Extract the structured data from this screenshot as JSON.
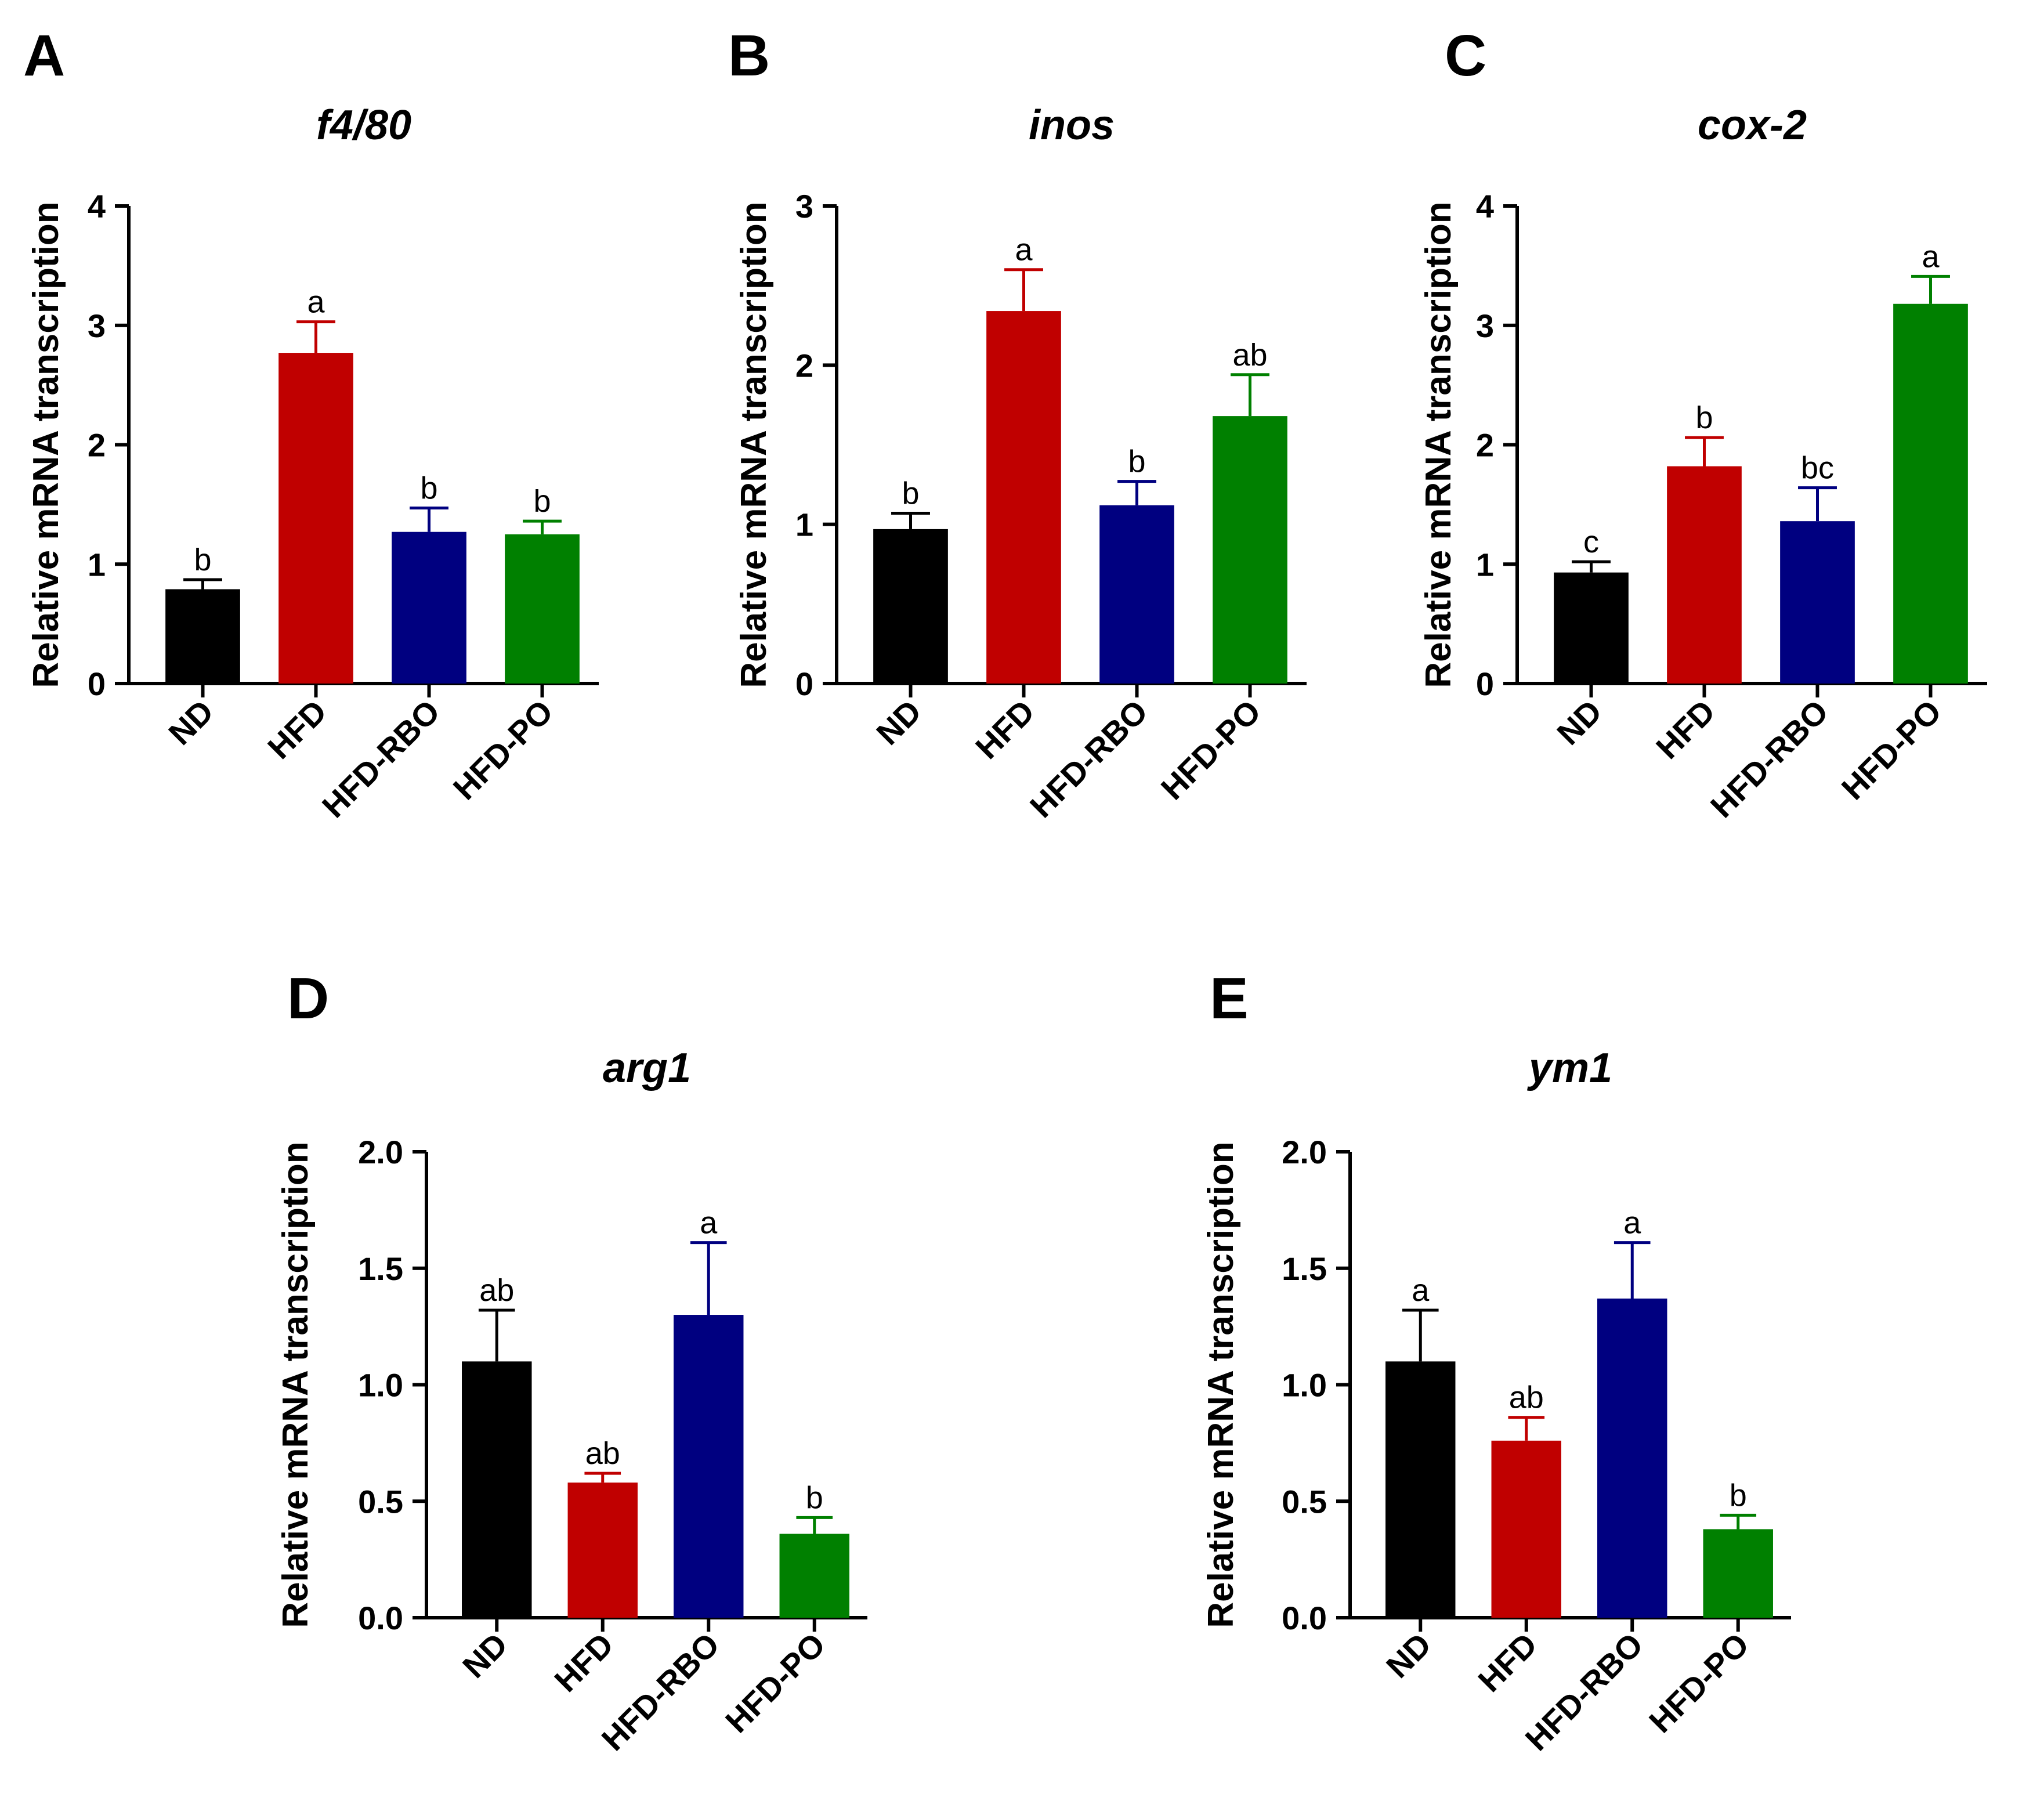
{
  "chart_data": [
    {
      "panel": "A",
      "type": "bar",
      "title": "f4/80",
      "ylabel": "Relative mRNA transcription",
      "xlabel": "",
      "categories": [
        "ND",
        "HFD",
        "HFD-RBO",
        "HFD-PO"
      ],
      "values": [
        0.79,
        2.77,
        1.27,
        1.25
      ],
      "errors": [
        0.08,
        0.26,
        0.2,
        0.11
      ],
      "significance": [
        "b",
        "a",
        "b",
        "b"
      ],
      "ylim": [
        0,
        4
      ],
      "yticks": [
        "0",
        "1",
        "2",
        "3",
        "4"
      ],
      "colors": [
        "#000000",
        "#C00000",
        "#000080",
        "#008000"
      ],
      "grid": false,
      "legend": "none"
    },
    {
      "panel": "B",
      "type": "bar",
      "title": "inos",
      "ylabel": "Relative mRNA transcription",
      "xlabel": "",
      "categories": [
        "ND",
        "HFD",
        "HFD-RBO",
        "HFD-PO"
      ],
      "values": [
        0.97,
        2.34,
        1.12,
        1.68
      ],
      "errors": [
        0.1,
        0.26,
        0.15,
        0.26
      ],
      "significance": [
        "b",
        "a",
        "b",
        "ab"
      ],
      "ylim": [
        0,
        3
      ],
      "yticks": [
        "0",
        "1",
        "2",
        "3"
      ],
      "colors": [
        "#000000",
        "#C00000",
        "#000080",
        "#008000"
      ],
      "grid": false,
      "legend": "none"
    },
    {
      "panel": "C",
      "type": "bar",
      "title": "cox-2",
      "ylabel": "Relative mRNA transcription",
      "xlabel": "",
      "categories": [
        "ND",
        "HFD",
        "HFD-RBO",
        "HFD-PO"
      ],
      "values": [
        0.93,
        1.82,
        1.36,
        3.18
      ],
      "errors": [
        0.09,
        0.24,
        0.28,
        0.23
      ],
      "significance": [
        "c",
        "b",
        "bc",
        "a"
      ],
      "ylim": [
        0,
        4
      ],
      "yticks": [
        "0",
        "1",
        "2",
        "3",
        "4"
      ],
      "colors": [
        "#000000",
        "#C00000",
        "#000080",
        "#008000"
      ],
      "grid": false,
      "legend": "none"
    },
    {
      "panel": "D",
      "type": "bar",
      "title": "arg1",
      "ylabel": "Relative mRNA transcription",
      "xlabel": "",
      "categories": [
        "ND",
        "HFD",
        "HFD-RBO",
        "HFD-PO"
      ],
      "values": [
        1.1,
        0.58,
        1.3,
        0.36
      ],
      "errors": [
        0.22,
        0.04,
        0.31,
        0.07
      ],
      "significance": [
        "ab",
        "ab",
        "a",
        "b"
      ],
      "ylim": [
        0,
        2
      ],
      "yticks": [
        "0.0",
        "0.5",
        "1.0",
        "1.5",
        "2.0"
      ],
      "colors": [
        "#000000",
        "#C00000",
        "#000080",
        "#008000"
      ],
      "grid": false,
      "legend": "none"
    },
    {
      "panel": "E",
      "type": "bar",
      "title": "ym1",
      "ylabel": "Relative mRNA transcription",
      "xlabel": "",
      "categories": [
        "ND",
        "HFD",
        "HFD-RBO",
        "HFD-PO"
      ],
      "values": [
        1.1,
        0.76,
        1.37,
        0.38
      ],
      "errors": [
        0.22,
        0.1,
        0.24,
        0.06
      ],
      "significance": [
        "a",
        "ab",
        "a",
        "b"
      ],
      "ylim": [
        0,
        2
      ],
      "yticks": [
        "0.0",
        "0.5",
        "1.0",
        "1.5",
        "2.0"
      ],
      "colors": [
        "#000000",
        "#C00000",
        "#000080",
        "#008000"
      ],
      "grid": false,
      "legend": "none"
    }
  ]
}
